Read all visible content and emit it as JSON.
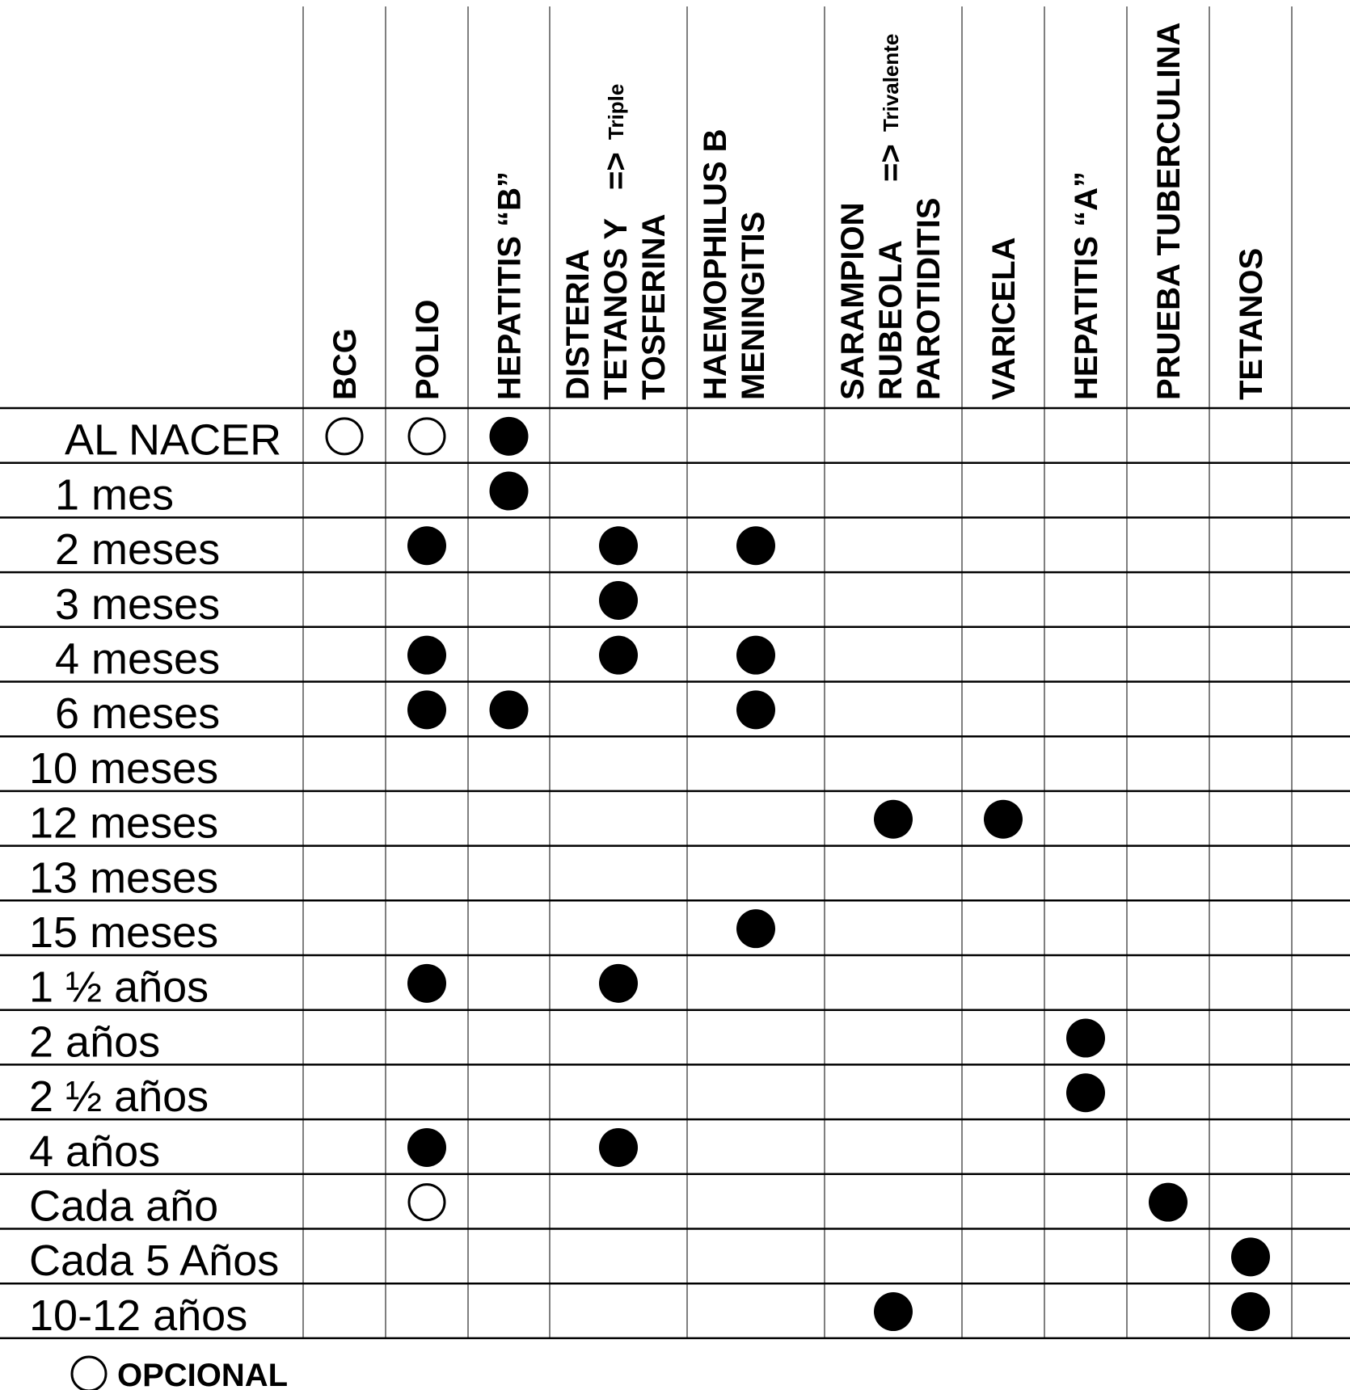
{
  "chart_data": {
    "type": "table",
    "title": "",
    "columns": [
      {
        "lines": [
          "BCG"
        ]
      },
      {
        "lines": [
          "POLIO"
        ]
      },
      {
        "lines": [
          "HEPATITIS “B”"
        ]
      },
      {
        "lines": [
          "DISTERIA",
          "TETANOS Y",
          "TOSFERINA"
        ],
        "note_arrow": "=>",
        "note": "Triple"
      },
      {
        "lines": [
          "HAEMOPHILUS B",
          "MENINGITIS"
        ]
      },
      {
        "lines": [
          "SARAMPION",
          "RUBEOLA",
          "PAROTIDITIS"
        ],
        "note_arrow": "=>",
        "note": "Trivalente"
      },
      {
        "lines": [
          "VARICELA"
        ]
      },
      {
        "lines": [
          "HEPATITIS “A”"
        ]
      },
      {
        "lines": [
          "PRUEBA TUBERCULINA"
        ]
      },
      {
        "lines": [
          "TETANOS"
        ]
      },
      {
        "lines": []
      }
    ],
    "rows": [
      "AL NACER",
      "1 mes",
      "2 meses",
      "3 meses",
      "4 meses",
      "6 meses",
      "10 meses",
      "12 meses",
      "13 meses",
      "15 meses",
      "1 ½ años",
      "2 años",
      "2 ½ años",
      "4 años",
      "Cada año",
      "Cada 5 Años",
      "10-12 años"
    ],
    "marks": [
      {
        "row": 0,
        "col": 0,
        "kind": "optional"
      },
      {
        "row": 0,
        "col": 1,
        "kind": "optional"
      },
      {
        "row": 0,
        "col": 2,
        "kind": "dose"
      },
      {
        "row": 1,
        "col": 2,
        "kind": "dose"
      },
      {
        "row": 2,
        "col": 1,
        "kind": "dose"
      },
      {
        "row": 2,
        "col": 3,
        "kind": "dose"
      },
      {
        "row": 2,
        "col": 4,
        "kind": "dose"
      },
      {
        "row": 3,
        "col": 3,
        "kind": "dose"
      },
      {
        "row": 4,
        "col": 1,
        "kind": "dose"
      },
      {
        "row": 4,
        "col": 3,
        "kind": "dose"
      },
      {
        "row": 4,
        "col": 4,
        "kind": "dose"
      },
      {
        "row": 5,
        "col": 1,
        "kind": "dose"
      },
      {
        "row": 5,
        "col": 2,
        "kind": "dose"
      },
      {
        "row": 5,
        "col": 4,
        "kind": "dose"
      },
      {
        "row": 7,
        "col": 5,
        "kind": "dose"
      },
      {
        "row": 7,
        "col": 6,
        "kind": "dose"
      },
      {
        "row": 9,
        "col": 4,
        "kind": "dose"
      },
      {
        "row": 10,
        "col": 1,
        "kind": "dose"
      },
      {
        "row": 10,
        "col": 3,
        "kind": "dose"
      },
      {
        "row": 11,
        "col": 7,
        "kind": "dose"
      },
      {
        "row": 12,
        "col": 7,
        "kind": "dose"
      },
      {
        "row": 13,
        "col": 1,
        "kind": "dose"
      },
      {
        "row": 13,
        "col": 3,
        "kind": "dose"
      },
      {
        "row": 14,
        "col": 1,
        "kind": "optional"
      },
      {
        "row": 14,
        "col": 8,
        "kind": "dose"
      },
      {
        "row": 15,
        "col": 9,
        "kind": "dose"
      },
      {
        "row": 16,
        "col": 5,
        "kind": "dose"
      },
      {
        "row": 16,
        "col": 9,
        "kind": "dose"
      }
    ],
    "legend": {
      "symbol": "optional",
      "label": "OPCIONAL"
    },
    "colors": {
      "ink": "#000000",
      "background": "#ffffff"
    }
  }
}
